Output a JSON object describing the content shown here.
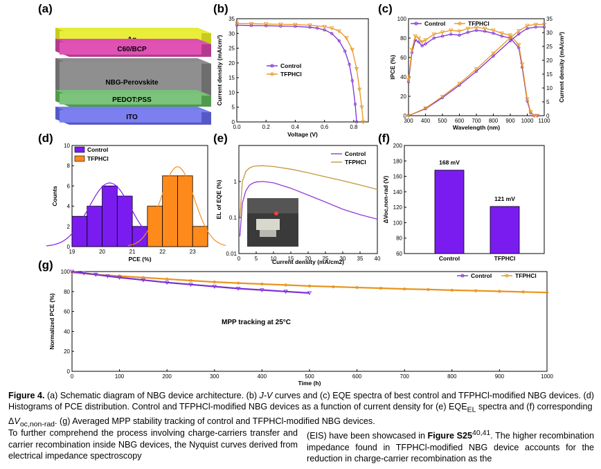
{
  "panel_labels": [
    "(a)",
    "(b)",
    "(c)",
    "(d)",
    "(e)",
    "(f)",
    "(g)"
  ],
  "panel_a": {
    "layers": [
      {
        "name": "Ag",
        "color": "#e8ee3a"
      },
      {
        "name": "C60/BCP",
        "color": "#e052b4"
      },
      {
        "name": "NBG-Perovskite",
        "color": "#8f8f8f"
      },
      {
        "name": "PEDOT:PSS",
        "color": "#7cc47c"
      },
      {
        "name": "ITO",
        "color": "#7b7ff0"
      }
    ]
  },
  "colors": {
    "control": "#7b2fd6",
    "tfphcl": "#e8951c",
    "bar_control": "#7a1cf0",
    "bar_tfphcl": "#ff8a1c"
  },
  "chart_data": [
    {
      "id": "b",
      "type": "line",
      "title": "",
      "xlabel": "Voltage (V)",
      "ylabel": "Current density (mA/cm²)",
      "xlim": [
        0,
        0.9
      ],
      "ylim": [
        0,
        35
      ],
      "xticks": [
        "0.0",
        "0.2",
        "0.4",
        "0.6",
        "0.8"
      ],
      "yticks": [
        "0",
        "5",
        "10",
        "15",
        "20",
        "25",
        "30",
        "35"
      ],
      "series": [
        {
          "name": "Control",
          "x": [
            0,
            0.1,
            0.2,
            0.3,
            0.4,
            0.5,
            0.55,
            0.6,
            0.65,
            0.7,
            0.74,
            0.77,
            0.79,
            0.81,
            0.82
          ],
          "y": [
            32.8,
            32.7,
            32.6,
            32.5,
            32.4,
            32.1,
            31.8,
            31.2,
            30.0,
            27.5,
            24.0,
            19.5,
            14.0,
            6.0,
            0
          ]
        },
        {
          "name": "TFPHCl",
          "x": [
            0,
            0.1,
            0.2,
            0.3,
            0.4,
            0.5,
            0.6,
            0.65,
            0.7,
            0.75,
            0.79,
            0.82,
            0.84,
            0.855,
            0.865
          ],
          "y": [
            33.4,
            33.3,
            33.2,
            33.1,
            33.0,
            32.8,
            32.3,
            31.8,
            30.8,
            28.5,
            24.5,
            18.0,
            11.0,
            5.0,
            0
          ]
        }
      ]
    },
    {
      "id": "c",
      "type": "line",
      "xlabel": "Wavelength (nm)",
      "ylabel": "IPCE (%)",
      "ylabel2": "Current density (mA/cm²)",
      "xlim": [
        300,
        1100
      ],
      "ylim": [
        0,
        100
      ],
      "ylim2": [
        0,
        35
      ],
      "xticks": [
        "300",
        "400",
        "500",
        "600",
        "700",
        "800",
        "900",
        "1000",
        "1100"
      ],
      "yticks": [
        "0",
        "20",
        "40",
        "60",
        "80",
        "100"
      ],
      "yticks2": [
        "0",
        "5",
        "10",
        "15",
        "20",
        "25",
        "30",
        "35"
      ],
      "series": [
        {
          "name": "Control",
          "x": [
            300,
            320,
            340,
            360,
            380,
            400,
            450,
            500,
            550,
            600,
            650,
            700,
            750,
            800,
            850,
            900,
            950,
            970,
            1000,
            1020,
            1040,
            1060
          ],
          "y": [
            35,
            65,
            78,
            76,
            72,
            74,
            80,
            82,
            84,
            83,
            86,
            88,
            87,
            85,
            82,
            80,
            70,
            50,
            15,
            3,
            0,
            0
          ]
        },
        {
          "name": "TFPHCl",
          "x": [
            300,
            320,
            340,
            360,
            380,
            400,
            450,
            500,
            550,
            600,
            650,
            700,
            750,
            800,
            850,
            900,
            950,
            970,
            1000,
            1020,
            1040,
            1060
          ],
          "y": [
            37,
            68,
            82,
            80,
            76,
            78,
            84,
            86,
            88,
            87,
            90,
            91,
            90,
            88,
            85,
            83,
            73,
            53,
            17,
            4,
            0,
            0
          ]
        },
        {
          "name": "Control Jsc",
          "axis": "y2",
          "x": [
            300,
            400,
            500,
            600,
            700,
            800,
            900,
            950,
            1000,
            1050,
            1100
          ],
          "y": [
            0,
            2.5,
            6.5,
            11,
            16,
            21.5,
            27,
            29.5,
            31.5,
            32,
            32
          ]
        },
        {
          "name": "TFPHCl Jsc",
          "axis": "y2",
          "x": [
            300,
            400,
            500,
            600,
            700,
            800,
            900,
            950,
            1000,
            1050,
            1100
          ],
          "y": [
            0,
            2.7,
            6.9,
            11.6,
            16.8,
            22.5,
            28.2,
            30.6,
            32.5,
            32.9,
            32.9
          ]
        }
      ]
    },
    {
      "id": "d",
      "type": "bar",
      "xlabel": "PCE (%)",
      "ylabel": "Counts",
      "xlim": [
        19,
        23.5
      ],
      "ylim": [
        0,
        10
      ],
      "xticks": [
        "19",
        "20",
        "21",
        "22",
        "23"
      ],
      "yticks": [
        "0",
        "2",
        "4",
        "6",
        "8",
        "10"
      ],
      "series": [
        {
          "name": "Control",
          "x": [
            19.25,
            19.75,
            20.25,
            20.75,
            21.25
          ],
          "values": [
            3,
            4,
            6,
            5,
            2
          ]
        },
        {
          "name": "TFPHCl",
          "x": [
            21.75,
            22.25,
            22.75,
            23.25
          ],
          "values": [
            4,
            7,
            7,
            2
          ]
        }
      ]
    },
    {
      "id": "e",
      "type": "line",
      "xlabel": "Current density (mA/cm2)",
      "ylabel": "EL of EQE (%)",
      "xlim": [
        0,
        40
      ],
      "ylim": [
        0.01,
        10
      ],
      "yscale": "log",
      "xticks": [
        "0",
        "5",
        "10",
        "15",
        "20",
        "25",
        "30",
        "35",
        "40"
      ],
      "yticks": [
        "0.01",
        "0.1",
        "1"
      ],
      "series": [
        {
          "name": "Control",
          "x": [
            0.3,
            1,
            2,
            3,
            4,
            5,
            7,
            10,
            15,
            20,
            25,
            30,
            35,
            40
          ],
          "y": [
            0.03,
            0.25,
            0.55,
            0.78,
            0.9,
            0.97,
            1.0,
            0.92,
            0.65,
            0.42,
            0.27,
            0.17,
            0.12,
            0.09
          ]
        },
        {
          "name": "TFPHCl",
          "x": [
            0.3,
            1,
            2,
            3,
            4,
            5,
            7,
            10,
            15,
            20,
            25,
            30,
            35,
            40
          ],
          "y": [
            0.1,
            1.0,
            1.9,
            2.35,
            2.6,
            2.7,
            2.75,
            2.6,
            2.2,
            1.75,
            1.35,
            1.05,
            0.8,
            0.6
          ]
        }
      ]
    },
    {
      "id": "f",
      "type": "bar",
      "xlabel": "",
      "ylabel": "ΔVoc,non-rad (V)",
      "ylim": [
        60,
        200
      ],
      "yticks": [
        "60",
        "80",
        "100",
        "120",
        "140",
        "160",
        "180",
        "200"
      ],
      "categories": [
        "Control",
        "TFPHCl"
      ],
      "values": [
        168,
        121
      ],
      "data_labels": [
        "168 mV",
        "121 mV"
      ]
    },
    {
      "id": "g",
      "type": "line",
      "xlabel": "Time (h)",
      "ylabel": "Normalized PCE (%)",
      "annotation": "MPP tracking at 25°C",
      "xlim": [
        0,
        1000
      ],
      "ylim": [
        0,
        100
      ],
      "xticks": [
        "0",
        "100",
        "200",
        "300",
        "400",
        "500",
        "600",
        "700",
        "800",
        "900",
        "1000"
      ],
      "yticks": [
        "0",
        "20",
        "40",
        "60",
        "80",
        "100"
      ],
      "series": [
        {
          "name": "Control",
          "x": [
            0,
            25,
            50,
            75,
            100,
            150,
            200,
            250,
            300,
            350,
            400,
            450,
            500
          ],
          "y": [
            100,
            98.5,
            97,
            95.5,
            94,
            91.5,
            89,
            87,
            85,
            83,
            81.5,
            80,
            78.5
          ]
        },
        {
          "name": "TFPHCl",
          "x": [
            0,
            50,
            100,
            150,
            200,
            250,
            300,
            350,
            400,
            450,
            500,
            550,
            600,
            650,
            700,
            750,
            800,
            850,
            900,
            950,
            1000
          ],
          "y": [
            99,
            97,
            95.5,
            94,
            92.5,
            91,
            89.5,
            88.5,
            87.5,
            86.5,
            85.5,
            84.8,
            84,
            83.3,
            82.6,
            82,
            81.3,
            80.8,
            80.2,
            79.6,
            79
          ]
        }
      ]
    }
  ],
  "panel_e_inset": "device photo",
  "caption": {
    "label": "Figure 4.",
    "text": "(a) Schematic diagram of NBG device architecture. (b) J-V curves and (c) EQE spectra of best control and TFPHCl-modified NBG devices. (d) Histograms of PCE distribution. Control and TFPHCl-modified NBG devices as a function of current density for (e) EQE_EL spectra and (f) corresponding ΔV_oc,non-rad. (g) Averaged MPP stability tracking of control and TFPHCl-modified NBG devices.",
    "part1": "(a) Schematic diagram of NBG device architecture. (b) ",
    "jv": "J-V",
    "part2": " curves and (c) EQE spectra of best control and TFPHCl-modified NBG devices. (d) Histograms of PCE distribution. Control and TFPHCl-modified NBG devices as a function of current density for (e) EQE",
    "sub_el": "EL",
    "part3": " spectra and (f) corresponding Δ",
    "voc": "V",
    "sub_voc": "oc,non-rad",
    "part4": ". (g) Averaged MPP stability tracking of control and TFPHCl-modified NBG devices."
  },
  "body": {
    "left": "To further comprehend the process involving charge-carriers transfer and carrier recombination inside NBG devices, the Nyquist curves derived from electrical impedance spectroscopy",
    "right_1": "(EIS) have been showcased in ",
    "right_fig": "Figure S25",
    "right_ref": "40,41",
    "right_2": ". The higher recombination impedance found in TFPHCl-modified NBG device accounts for the reduction in charge-carrier recombination as the"
  }
}
